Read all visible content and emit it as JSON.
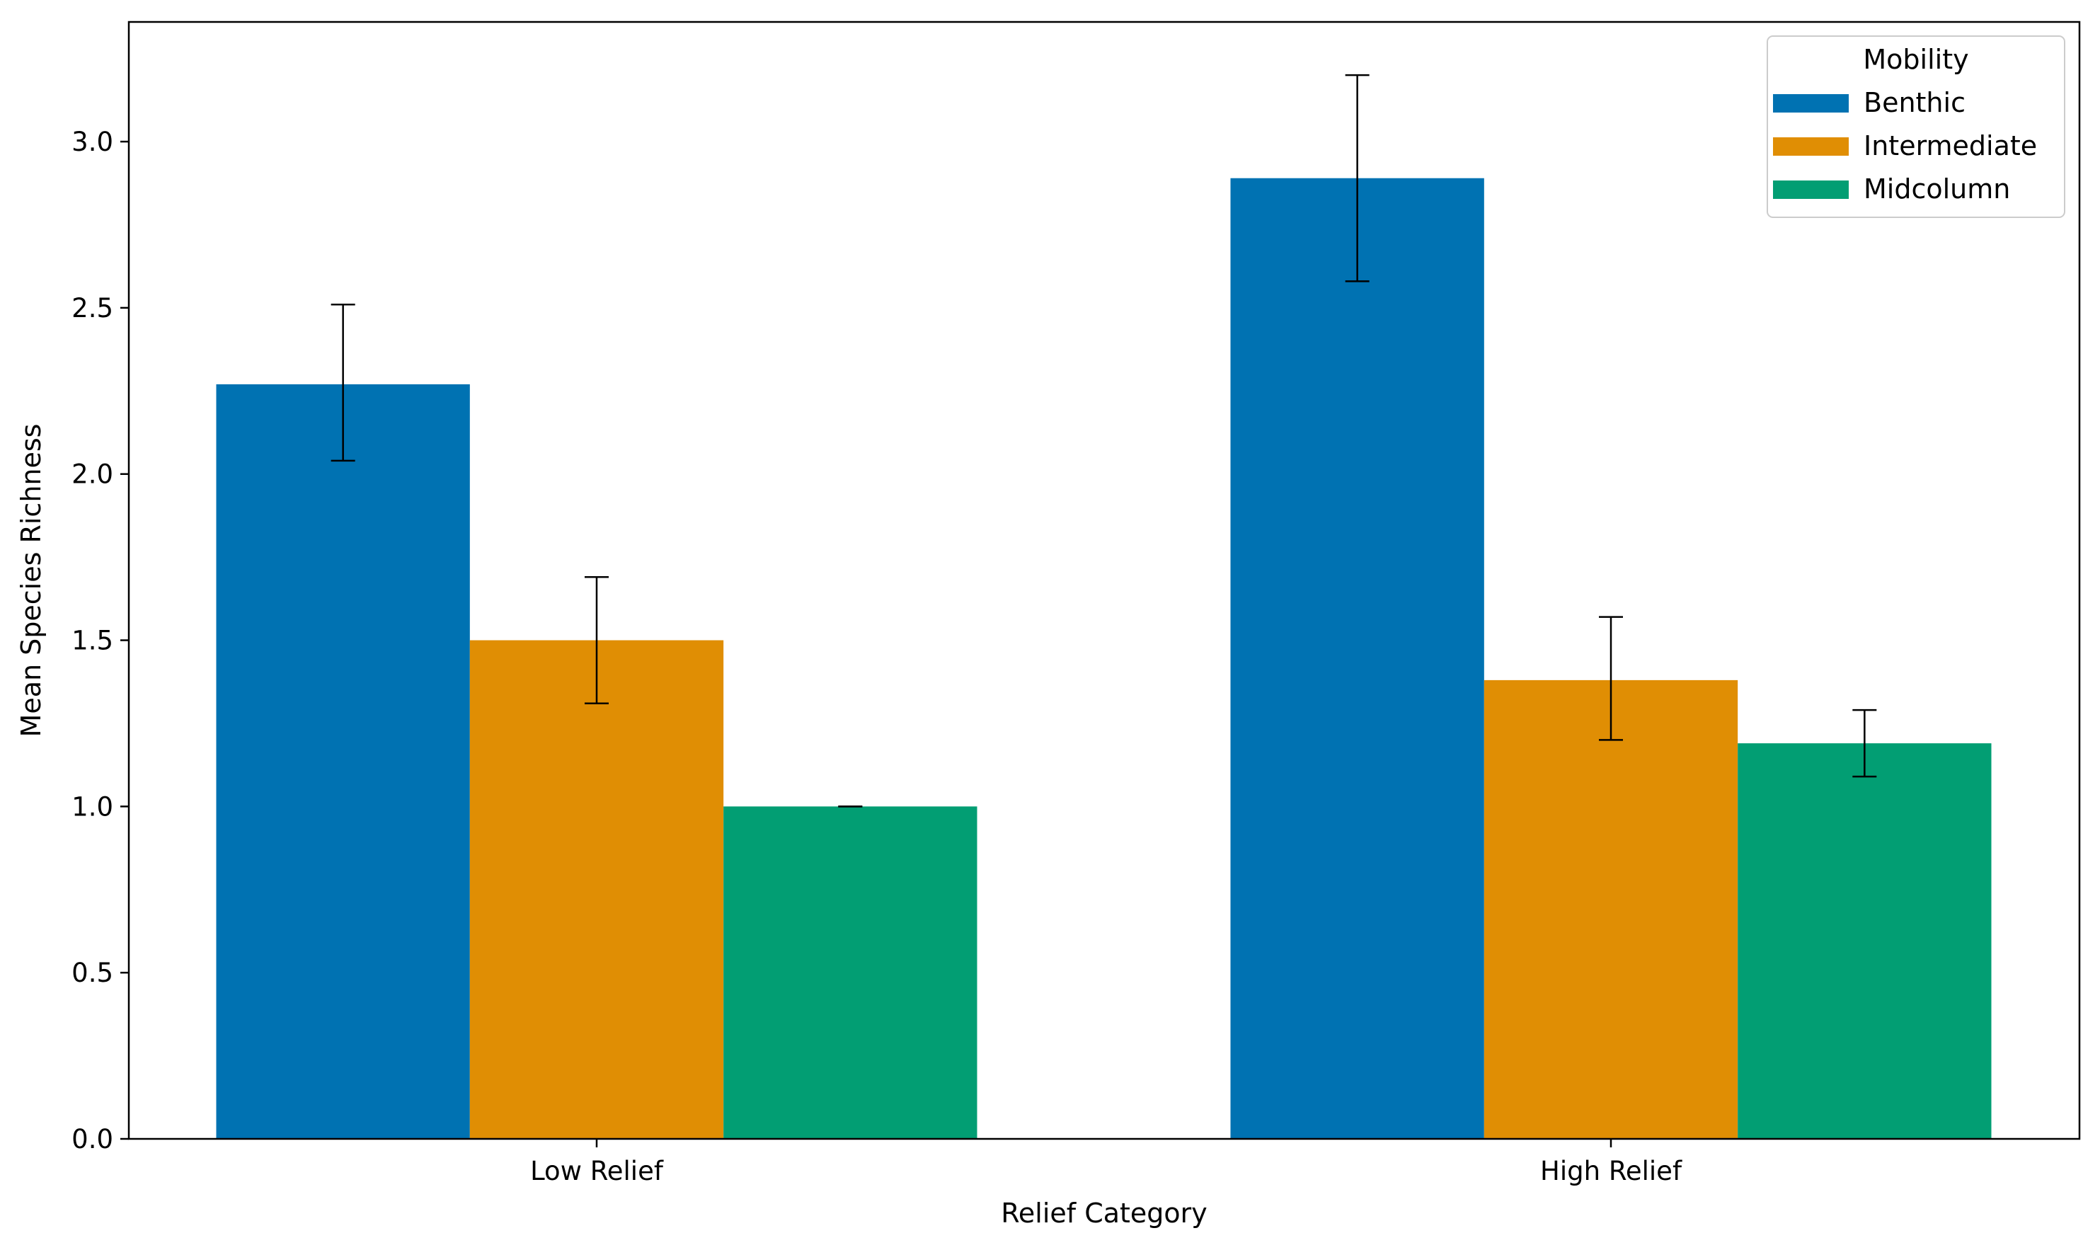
{
  "chart_data": {
    "type": "bar",
    "categories": [
      "Low Relief",
      "High Relief"
    ],
    "series": [
      {
        "name": "Benthic",
        "color": "#0072B2",
        "values": [
          2.27,
          2.89
        ],
        "errors": [
          [
            2.04,
            2.51
          ],
          [
            2.58,
            3.2
          ]
        ]
      },
      {
        "name": "Intermediate",
        "color": "#E08E04",
        "values": [
          1.5,
          1.38
        ],
        "errors": [
          [
            1.31,
            1.69
          ],
          [
            1.2,
            1.57
          ]
        ]
      },
      {
        "name": "Midcolumn",
        "color": "#029E73",
        "values": [
          1.0,
          1.19
        ],
        "errors": [
          [
            1.0,
            1.0
          ],
          [
            1.09,
            1.29
          ]
        ]
      }
    ],
    "xlabel": "Relief Category",
    "ylabel": "Mean Species Richness",
    "ylim": [
      0,
      3.36
    ],
    "yticks": [
      "0.0",
      "0.5",
      "1.0",
      "1.5",
      "2.0",
      "2.5",
      "3.0"
    ],
    "legend": {
      "title": "Mobility",
      "placement": "top-right"
    },
    "grid": false
  }
}
